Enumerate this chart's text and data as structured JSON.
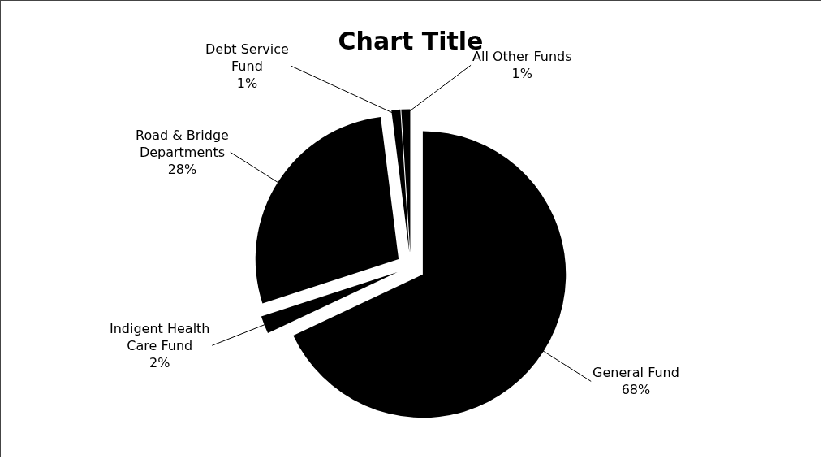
{
  "chart_data": {
    "type": "pie",
    "title": "Chart Title",
    "categories": [
      "General Fund",
      "Indigent Health Care Fund",
      "Road & Bridge Departments",
      "Debt Service Fund",
      "All Other Funds"
    ],
    "values": [
      68,
      2,
      28,
      1,
      1
    ],
    "value_labels": [
      "68%",
      "2%",
      "28%",
      "1%",
      "1%"
    ],
    "colors": [
      "#000000",
      "#000000",
      "#000000",
      "#000000",
      "#000000"
    ],
    "legend": false
  }
}
